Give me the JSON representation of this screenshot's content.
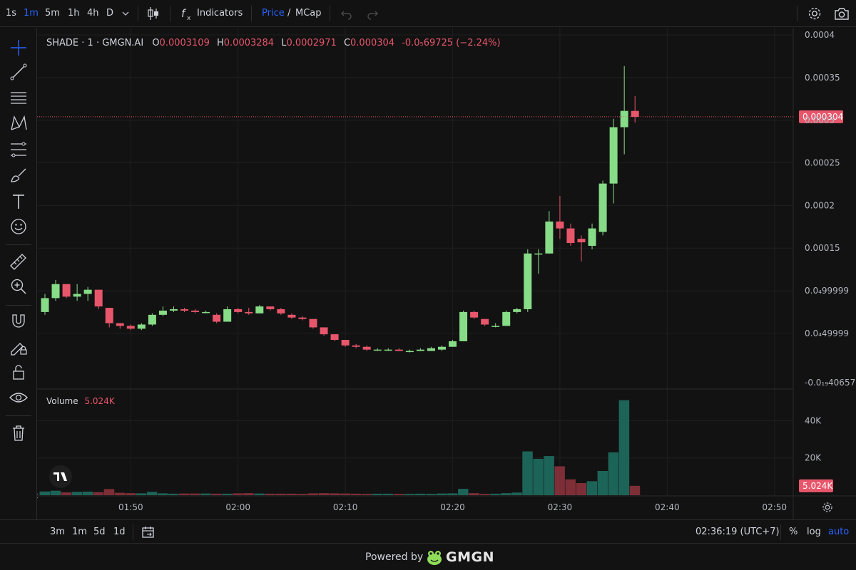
{
  "toolbar": {
    "intervals": [
      "1s",
      "1m",
      "5m",
      "1h",
      "4h",
      "D"
    ],
    "active_interval": "1m",
    "indicators_label": "Indicators",
    "price_label": "Price",
    "slash": "/",
    "mcap_label": "MCap"
  },
  "legend": {
    "symbol": "SHADE · 1 · GMGN.AI",
    "o_label": "O",
    "o_value": "0.0003109",
    "h_label": "H",
    "h_value": "0.0003284",
    "l_label": "L",
    "l_value": "0.0002971",
    "c_label": "C",
    "c_value": "0.000304",
    "change": "-0.0₅69725 (−2.24%)",
    "volume_label": "Volume",
    "volume_value": "5.024K"
  },
  "bottom": {
    "ranges": [
      "3m",
      "1m",
      "5d",
      "1d"
    ],
    "clock": "02:36:19 (UTC+7)",
    "percent_label": "%",
    "log_label": "log",
    "auto_label": "auto"
  },
  "footer": {
    "powered_label": "Powered by",
    "brand": "GMGN"
  },
  "colors": {
    "up": "#87dc87",
    "down": "#e8566b",
    "vol_up": "#1d6458",
    "vol_down": "#7e2e37",
    "accent": "#2962ff"
  },
  "chart_data": {
    "type": "candlestick",
    "price_axis": {
      "ylim": [
        -7.7e-06,
        0.0004
      ],
      "ticks": [
        0.0004,
        0.00035,
        0.0003,
        0.00025,
        0.0002,
        0.00015,
        0.0001,
        5e-05
      ],
      "tick_labels": [
        "0.0004",
        "0.00035",
        "0.0003",
        "0.00025",
        "0.0002",
        "0.00015",
        "0.0₄99999",
        "0.0₄49999"
      ],
      "bottom_label": "-0.0₁₉40657",
      "last_price": 0.000304,
      "last_price_label": "0.000304"
    },
    "volume_axis": {
      "ylim": [
        0,
        52000
      ],
      "ticks": [
        40000,
        20000
      ],
      "tick_labels": [
        "40K",
        "20K"
      ],
      "last_volume": 5024,
      "last_volume_label": "5.024K"
    },
    "time_axis": {
      "labels": [
        "01:50",
        "02:00",
        "02:10",
        "02:20",
        "02:30",
        "02:40",
        "02:50"
      ],
      "start_time": "01:42"
    },
    "candles": [
      {
        "o": 7.51e-05,
        "h": 9.63e-05,
        "l": 7.18e-05,
        "c": 9.14e-05
      },
      {
        "o": 9.14e-05,
        "h": 0.0001127,
        "l": 8.82e-05,
        "c": 0.0001078
      },
      {
        "o": 0.0001078,
        "h": 0.0001078,
        "l": 9.14e-05,
        "c": 9.31e-05
      },
      {
        "o": 9.31e-05,
        "h": 0.0001078,
        "l": 8.82e-05,
        "c": 9.63e-05
      },
      {
        "o": 9.63e-05,
        "h": 0.0001045,
        "l": 8.82e-05,
        "c": 0.0001012
      },
      {
        "o": 0.0001012,
        "h": 0.0001012,
        "l": 7.84e-05,
        "c": 8.16e-05
      },
      {
        "o": 8e-05,
        "h": 8e-05,
        "l": 5.71e-05,
        "c": 6.2e-05
      },
      {
        "o": 6.2e-05,
        "h": 6.2e-05,
        "l": 5.55e-05,
        "c": 5.88e-05
      },
      {
        "o": 5.88e-05,
        "h": 6.04e-05,
        "l": 5.39e-05,
        "c": 5.55e-05
      },
      {
        "o": 5.55e-05,
        "h": 6.2e-05,
        "l": 5.39e-05,
        "c": 6.04e-05
      },
      {
        "o": 6.04e-05,
        "h": 7.35e-05,
        "l": 5.88e-05,
        "c": 7.18e-05
      },
      {
        "o": 7.18e-05,
        "h": 8.16e-05,
        "l": 7.02e-05,
        "c": 7.67e-05
      },
      {
        "o": 7.67e-05,
        "h": 8.16e-05,
        "l": 7.51e-05,
        "c": 7.84e-05
      },
      {
        "o": 7.84e-05,
        "h": 8e-05,
        "l": 7.51e-05,
        "c": 7.67e-05
      },
      {
        "o": 7.67e-05,
        "h": 7.84e-05,
        "l": 7.35e-05,
        "c": 7.51e-05
      },
      {
        "o": 7.51e-05,
        "h": 7.67e-05,
        "l": 7.35e-05,
        "c": 7.51e-05
      },
      {
        "o": 7.18e-05,
        "h": 7.35e-05,
        "l": 6.2e-05,
        "c": 6.37e-05
      },
      {
        "o": 6.37e-05,
        "h": 8.16e-05,
        "l": 6.37e-05,
        "c": 7.84e-05
      },
      {
        "o": 7.84e-05,
        "h": 8e-05,
        "l": 7.35e-05,
        "c": 7.51e-05
      },
      {
        "o": 7.51e-05,
        "h": 8e-05,
        "l": 7.18e-05,
        "c": 7.35e-05
      },
      {
        "o": 7.35e-05,
        "h": 8.33e-05,
        "l": 7.35e-05,
        "c": 8.16e-05
      },
      {
        "o": 8.16e-05,
        "h": 8.16e-05,
        "l": 7.67e-05,
        "c": 7.84e-05
      },
      {
        "o": 7.84e-05,
        "h": 8e-05,
        "l": 7.18e-05,
        "c": 7.35e-05
      },
      {
        "o": 7.18e-05,
        "h": 7.35e-05,
        "l": 6.69e-05,
        "c": 6.86e-05
      },
      {
        "o": 6.86e-05,
        "h": 7.02e-05,
        "l": 6.53e-05,
        "c": 6.69e-05
      },
      {
        "o": 6.69e-05,
        "h": 6.69e-05,
        "l": 5.55e-05,
        "c": 5.71e-05
      },
      {
        "o": 5.71e-05,
        "h": 5.71e-05,
        "l": 4.73e-05,
        "c": 4.9e-05
      },
      {
        "o": 4.9e-05,
        "h": 4.9e-05,
        "l": 4.08e-05,
        "c": 4.24e-05
      },
      {
        "o": 4.24e-05,
        "h": 4.24e-05,
        "l": 3.43e-05,
        "c": 3.59e-05
      },
      {
        "o": 3.59e-05,
        "h": 3.75e-05,
        "l": 3.26e-05,
        "c": 3.43e-05
      },
      {
        "o": 3.43e-05,
        "h": 3.59e-05,
        "l": 2.94e-05,
        "c": 3.1e-05
      },
      {
        "o": 3.1e-05,
        "h": 3.26e-05,
        "l": 2.94e-05,
        "c": 3.1e-05
      },
      {
        "o": 3.1e-05,
        "h": 3.26e-05,
        "l": 2.94e-05,
        "c": 3.1e-05
      },
      {
        "o": 3.1e-05,
        "h": 3.26e-05,
        "l": 2.94e-05,
        "c": 2.94e-05
      },
      {
        "o": 2.94e-05,
        "h": 3.1e-05,
        "l": 2.77e-05,
        "c": 2.94e-05
      },
      {
        "o": 2.94e-05,
        "h": 3.26e-05,
        "l": 2.94e-05,
        "c": 3.1e-05
      },
      {
        "o": 2.94e-05,
        "h": 3.43e-05,
        "l": 2.94e-05,
        "c": 3.26e-05
      },
      {
        "o": 3.1e-05,
        "h": 3.59e-05,
        "l": 2.94e-05,
        "c": 3.43e-05
      },
      {
        "o": 3.43e-05,
        "h": 4.24e-05,
        "l": 3.43e-05,
        "c": 4.08e-05
      },
      {
        "o": 4.08e-05,
        "h": 7.67e-05,
        "l": 4.08e-05,
        "c": 7.51e-05
      },
      {
        "o": 7.51e-05,
        "h": 7.67e-05,
        "l": 6.69e-05,
        "c": 6.86e-05
      },
      {
        "o": 6.69e-05,
        "h": 6.69e-05,
        "l": 5.88e-05,
        "c": 6.04e-05
      },
      {
        "o": 5.88e-05,
        "h": 6.2e-05,
        "l": 5.71e-05,
        "c": 5.88e-05
      },
      {
        "o": 5.88e-05,
        "h": 7.67e-05,
        "l": 5.88e-05,
        "c": 7.51e-05
      },
      {
        "o": 7.51e-05,
        "h": 8e-05,
        "l": 7.35e-05,
        "c": 7.84e-05
      },
      {
        "o": 7.84e-05,
        "h": 0.0001486,
        "l": 7.51e-05,
        "c": 0.0001437
      },
      {
        "o": 0.0001437,
        "h": 0.0001486,
        "l": 0.00012,
        "c": 0.0001437
      },
      {
        "o": 0.0001437,
        "h": 0.0001935,
        "l": 0.0001437,
        "c": 0.0001812
      },
      {
        "o": 0.0001812,
        "h": 0.0002112,
        "l": 0.0001609,
        "c": 0.0001731
      },
      {
        "o": 0.0001731,
        "h": 0.0001788,
        "l": 0.0001527,
        "c": 0.000156
      },
      {
        "o": 0.0001609,
        "h": 0.0001649,
        "l": 0.0001343,
        "c": 0.0001568
      },
      {
        "o": 0.0001527,
        "h": 0.0001788,
        "l": 0.0001486,
        "c": 0.0001731
      },
      {
        "o": 0.000169,
        "h": 0.0002292,
        "l": 0.0001649,
        "c": 0.0002257
      },
      {
        "o": 0.0002257,
        "h": 0.0003016,
        "l": 0.0002025,
        "c": 0.0002918
      },
      {
        "o": 0.0002918,
        "h": 0.0003635,
        "l": 0.00026,
        "c": 0.0003109
      },
      {
        "o": 0.0003109,
        "h": 0.0003284,
        "l": 0.0002971,
        "c": 0.000304
      }
    ],
    "volumes": [
      2000,
      2400,
      1500,
      1800,
      1900,
      1600,
      3300,
      1300,
      1100,
      1000,
      1800,
      1000,
      800,
      900,
      900,
      900,
      800,
      800,
      1000,
      1100,
      900,
      800,
      800,
      800,
      700,
      1000,
      1100,
      1000,
      900,
      800,
      700,
      800,
      800,
      700,
      700,
      800,
      700,
      900,
      1000,
      3400,
      1100,
      700,
      800,
      1100,
      1400,
      23500,
      19500,
      21000,
      15500,
      8500,
      6500,
      7500,
      13000,
      23000,
      51000,
      5024
    ]
  }
}
